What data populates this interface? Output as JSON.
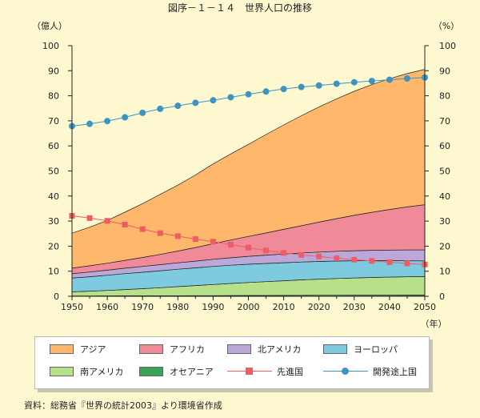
{
  "title": "図序－１－１４　世界人口の推移",
  "source": "資料：総務省『世界の統計2003』より環境省作成",
  "chart_data": {
    "type": "area",
    "x": [
      1950,
      1955,
      1960,
      1965,
      1970,
      1975,
      1980,
      1985,
      1990,
      1995,
      2000,
      2005,
      2010,
      2015,
      2020,
      2025,
      2030,
      2035,
      2040,
      2045,
      2050
    ],
    "xticks": [
      "1950",
      "1960",
      "1970",
      "1980",
      "1990",
      "2000",
      "2010",
      "2020",
      "2030",
      "2040",
      "2050"
    ],
    "xlim": [
      1950,
      2050
    ],
    "ylabel_left": "（億人）",
    "ylabel_right": "（%）",
    "xlabel": "（年）",
    "ylim_left": [
      0,
      100
    ],
    "ylim_right": [
      0,
      100
    ],
    "yticks": [
      "0",
      "10",
      "20",
      "30",
      "40",
      "50",
      "60",
      "70",
      "80",
      "90",
      "100"
    ],
    "stacked_series": [
      {
        "name": "オセアニア",
        "color": "#3aa35a",
        "values": [
          0.13,
          0.14,
          0.16,
          0.18,
          0.19,
          0.21,
          0.23,
          0.25,
          0.27,
          0.29,
          0.31,
          0.33,
          0.35,
          0.38,
          0.4,
          0.42,
          0.44,
          0.45,
          0.46,
          0.47,
          0.48
        ]
      },
      {
        "name": "南アメリカ",
        "color": "#b7e08a",
        "values": [
          1.67,
          1.91,
          2.18,
          2.5,
          2.85,
          3.22,
          3.62,
          4.04,
          4.43,
          4.82,
          5.19,
          5.53,
          5.86,
          6.16,
          6.43,
          6.68,
          6.89,
          7.06,
          7.2,
          7.31,
          7.38
        ]
      },
      {
        "name": "ヨーロッパ",
        "color": "#7ecbe0",
        "values": [
          5.47,
          5.76,
          6.05,
          6.35,
          6.56,
          6.76,
          6.94,
          7.06,
          7.22,
          7.28,
          7.28,
          7.24,
          7.19,
          7.14,
          7.07,
          6.97,
          6.85,
          6.71,
          6.56,
          6.41,
          6.26
        ]
      },
      {
        "name": "北アメリカ",
        "color": "#bba8d8",
        "values": [
          1.72,
          1.87,
          2.04,
          2.19,
          2.31,
          2.43,
          2.56,
          2.69,
          2.83,
          2.99,
          3.15,
          3.31,
          3.46,
          3.61,
          3.75,
          3.88,
          4.01,
          4.12,
          4.22,
          4.32,
          4.4
        ]
      },
      {
        "name": "アフリカ",
        "color": "#f08a98",
        "values": [
          2.21,
          2.48,
          2.77,
          3.13,
          3.57,
          4.08,
          4.69,
          5.41,
          6.21,
          7.07,
          7.96,
          8.87,
          9.85,
          10.87,
          11.94,
          13.04,
          14.12,
          15.18,
          16.2,
          17.15,
          18.03
        ]
      },
      {
        "name": "アジア",
        "color": "#ffb76c",
        "values": [
          13.99,
          15.42,
          17.04,
          19.21,
          21.47,
          23.97,
          26.32,
          28.96,
          31.86,
          34.37,
          36.72,
          39.25,
          41.66,
          43.88,
          45.94,
          47.81,
          49.48,
          50.94,
          52.16,
          53.2,
          54.0
        ]
      }
    ],
    "line_series": [
      {
        "name": "先進国",
        "color": "#ee5c64",
        "marker": "square",
        "values": [
          32.1,
          31.2,
          30.1,
          28.6,
          26.8,
          25.2,
          24.0,
          22.8,
          21.8,
          20.6,
          19.4,
          18.3,
          17.3,
          16.5,
          15.9,
          15.2,
          14.6,
          14.1,
          13.6,
          13.1,
          12.7
        ]
      },
      {
        "name": "開発途上国",
        "color": "#3d94c2",
        "marker": "circle",
        "values": [
          67.9,
          68.8,
          69.9,
          71.4,
          73.2,
          74.8,
          76.0,
          77.2,
          78.2,
          79.4,
          80.6,
          81.7,
          82.7,
          83.5,
          84.1,
          84.8,
          85.4,
          85.9,
          86.4,
          86.9,
          87.3
        ]
      }
    ]
  },
  "legend": {
    "items": [
      {
        "label": "アジア",
        "kind": "area",
        "color": "#ffb76c"
      },
      {
        "label": "アフリカ",
        "kind": "area",
        "color": "#f08a98"
      },
      {
        "label": "北アメリカ",
        "kind": "area",
        "color": "#bba8d8"
      },
      {
        "label": "ヨーロッパ",
        "kind": "area",
        "color": "#7ecbe0"
      },
      {
        "label": "南アメリカ",
        "kind": "area",
        "color": "#b7e08a"
      },
      {
        "label": "オセアニア",
        "kind": "area",
        "color": "#3aa35a"
      },
      {
        "label": "先進国",
        "kind": "line-square",
        "color": "#ee5c64"
      },
      {
        "label": "開発途上国",
        "kind": "line-circle",
        "color": "#3d94c2"
      }
    ]
  }
}
